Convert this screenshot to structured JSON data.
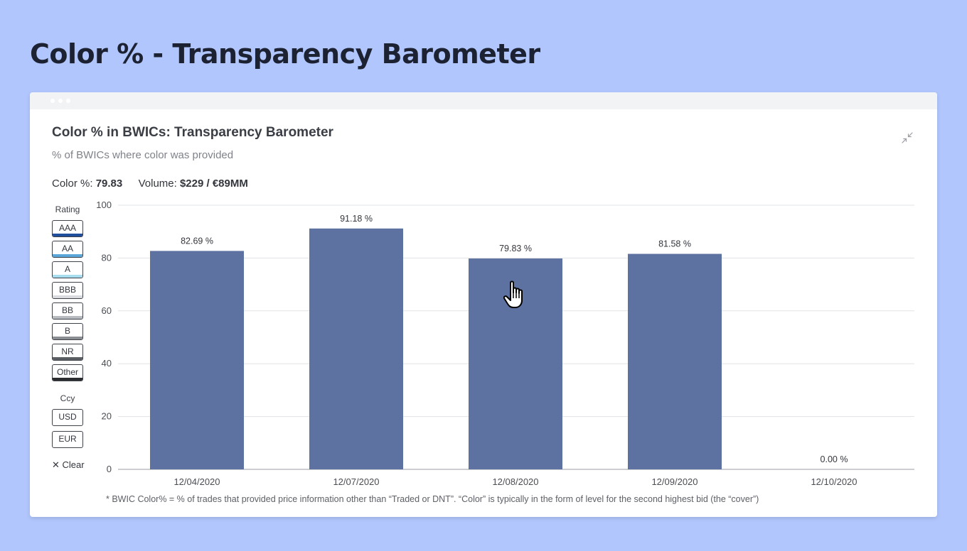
{
  "page": {
    "title": "Color % - Transparency Barometer"
  },
  "panel": {
    "title": "Color % in BWICs: Transparency Barometer",
    "subtitle": "% of BWICs where color was provided",
    "collapse_icon": "collapse-arrows-icon"
  },
  "stats": {
    "color_label": "Color %:",
    "color_value": "79.83",
    "volume_label": "Volume:",
    "volume_value": "$229 / €89MM"
  },
  "filters": {
    "rating_heading": "Rating",
    "ratings": [
      {
        "label": "AAA",
        "color": "#1f4e9c"
      },
      {
        "label": "AA",
        "color": "#5aa6d8"
      },
      {
        "label": "A",
        "color": "#a8dcef"
      },
      {
        "label": "BBB",
        "color": "#d9dbde"
      },
      {
        "label": "BB",
        "color": "#b8bbbf"
      },
      {
        "label": "B",
        "color": "#8a8d92"
      },
      {
        "label": "NR",
        "color": "#5b5e63"
      },
      {
        "label": "Other",
        "color": "#2a2c30"
      }
    ],
    "ccy_heading": "Ccy",
    "currencies": [
      "USD",
      "EUR"
    ],
    "clear_label": "Clear",
    "clear_icon": "close-icon"
  },
  "chart_data": {
    "type": "bar",
    "categories": [
      "12/04/2020",
      "12/07/2020",
      "12/08/2020",
      "12/09/2020",
      "12/10/2020"
    ],
    "values": [
      82.69,
      91.18,
      79.83,
      81.58,
      0.0
    ],
    "data_labels": [
      "82.69 %",
      "91.18 %",
      "79.83 %",
      "81.58 %",
      "0.00 %"
    ],
    "bar_color": "#5e72a2",
    "ylim": [
      0,
      100
    ],
    "yticks": [
      0,
      20,
      40,
      60,
      80,
      100
    ],
    "grid": true
  },
  "footnote": "* BWIC Color% =  % of trades that provided price information other than “Traded or DNT”. “Color” is typically in the form of level for the second highest bid (the “cover”)"
}
